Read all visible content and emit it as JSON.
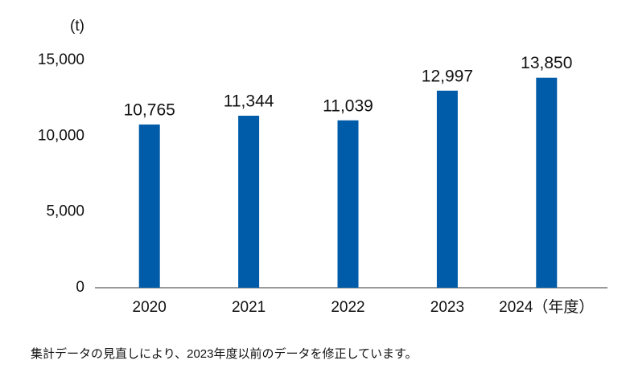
{
  "chart_data": {
    "type": "bar",
    "unit_label": "(t)",
    "categories": [
      "2020",
      "2021",
      "2022",
      "2023",
      "2024（年度）"
    ],
    "values": [
      10765,
      11344,
      11039,
      12997,
      13850
    ],
    "value_labels": [
      "10,765",
      "11,344",
      "11,039",
      "12,997",
      "13,850"
    ],
    "color": "#005ca8",
    "ylim": [
      0,
      15000
    ],
    "yticks": [
      {
        "value": 0,
        "label": "0"
      },
      {
        "value": 5000,
        "label": "5,000"
      },
      {
        "value": 10000,
        "label": "10,000"
      },
      {
        "value": 15000,
        "label": "15,000"
      }
    ],
    "grid": false,
    "note": "集計データの見直しにより、2023年度以前のデータを修正しています。"
  }
}
